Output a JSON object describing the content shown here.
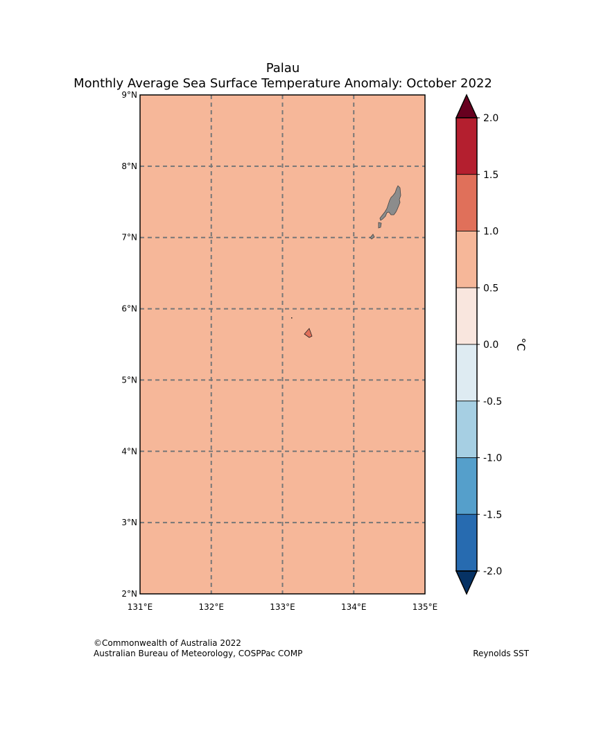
{
  "title": {
    "line1": "Palau",
    "line2": "Monthly Average Sea Surface Temperature Anomaly: October 2022"
  },
  "map": {
    "region": "Palau",
    "ocean_fill": "#f6b799",
    "land_fill": "#8c8c8c",
    "highlight_island_fill": "#e0705a",
    "gridline_color": "#777777",
    "lon_ticks": [
      131,
      132,
      133,
      134,
      135
    ],
    "lon_labels": [
      "131°E",
      "132°E",
      "133°E",
      "134°E",
      "135°E"
    ],
    "lat_ticks": [
      2,
      3,
      4,
      5,
      6,
      7,
      8,
      9
    ],
    "lat_labels": [
      "2°N",
      "3°N",
      "4°N",
      "5°N",
      "6°N",
      "7°N",
      "8°N",
      "9°N"
    ],
    "lon_range": [
      131,
      135
    ],
    "lat_range": [
      2,
      9
    ]
  },
  "colorbar": {
    "unit": "°C",
    "ticks": [
      2.0,
      1.5,
      1.0,
      0.5,
      0.0,
      -0.5,
      -1.0,
      -1.5,
      -2.0
    ],
    "tick_labels": [
      "2.0",
      "1.5",
      "1.0",
      "0.5",
      "0.0",
      "-0.5",
      "-1.0",
      "-1.5",
      "-2.0"
    ],
    "bins": [
      {
        "from": 1.5,
        "to": 2.0,
        "color": "#b41f2f"
      },
      {
        "from": 1.0,
        "to": 1.5,
        "color": "#e0705a"
      },
      {
        "from": 0.5,
        "to": 1.0,
        "color": "#f6b799"
      },
      {
        "from": 0.0,
        "to": 0.5,
        "color": "#f9e6de"
      },
      {
        "from": -0.5,
        "to": 0.0,
        "color": "#deebf2"
      },
      {
        "from": -1.0,
        "to": -0.5,
        "color": "#a6cfe3"
      },
      {
        "from": -1.5,
        "to": -1.0,
        "color": "#559fcb"
      },
      {
        "from": -2.0,
        "to": -1.5,
        "color": "#276bb0"
      }
    ],
    "over_color": "#67001f",
    "under_color": "#063264"
  },
  "footer": {
    "credit_line1": "©Commonwealth of Australia 2022",
    "credit_line2": "Australian Bureau of Meteorology, COSPPac COMP",
    "source": "Reynolds SST"
  }
}
